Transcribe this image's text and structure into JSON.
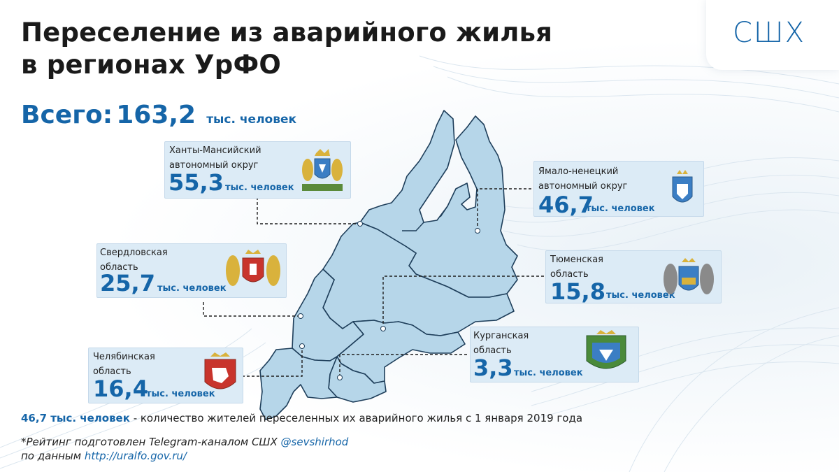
{
  "title_line1": "Переселение из аварийного жилья",
  "title_line2": "в регионах УрФО",
  "total": {
    "label": "Всего:",
    "value": "163,2",
    "unit": "тыс. человек"
  },
  "logo": "СШХ",
  "regions": [
    {
      "id": "khmao",
      "name_line1": "Ханты-Мансийский",
      "name_line2": "автономный округ",
      "value": "55,3",
      "unit": "тыс. человек",
      "emblem": "khmao-coat-of-arms-icon"
    },
    {
      "id": "yanao",
      "name_line1": "Ямало-ненецкий",
      "name_line2": "автономный округ",
      "value": "46,7",
      "unit": "тыс. человек",
      "emblem": "yanao-coat-of-arms-icon"
    },
    {
      "id": "sverdlovsk",
      "name_line1": "Свердловская",
      "name_line2": "область",
      "value": "25,7",
      "unit": "тыс. человек",
      "emblem": "sverdlovsk-coat-of-arms-icon"
    },
    {
      "id": "tyumen",
      "name_line1": "Тюменская",
      "name_line2": "область",
      "value": "15,8",
      "unit": "тыс. человек",
      "emblem": "tyumen-coat-of-arms-icon"
    },
    {
      "id": "chelyabinsk",
      "name_line1": "Челябинская",
      "name_line2": "область",
      "value": "16,4",
      "unit": "тыс. человек",
      "emblem": "chelyabinsk-coat-of-arms-icon"
    },
    {
      "id": "kurgan",
      "name_line1": "Курганская",
      "name_line2": "область",
      "value": "3,3",
      "unit": "тыс. человек",
      "emblem": "kurgan-coat-of-arms-icon"
    }
  ],
  "footnote": {
    "highlight": "46,7 тыс. человек",
    "text": " - количество жителей переселенных их аварийного жилья с 1 января 2019 года"
  },
  "source": {
    "line1_text": "*Рейтинг подготовлен Telegram-каналом СШХ ",
    "line1_link": "@sevshirhod",
    "line2_text": "по данным ",
    "line2_link": "http://uralfo.gov.ru/"
  },
  "colors": {
    "accent": "#1565a8",
    "card_bg": "#dcebf6",
    "map_fill": "#b6d6e9",
    "map_stroke": "#1e3e5a"
  }
}
